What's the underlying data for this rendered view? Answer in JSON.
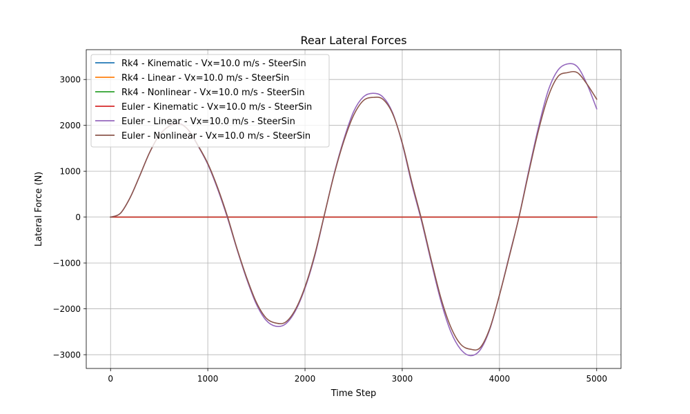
{
  "chart_data": {
    "type": "line",
    "title": "Rear Lateral Forces",
    "xlabel": "Time Step",
    "ylabel": "Lateral Force (N)",
    "xlim": [
      -250,
      5250
    ],
    "ylim": [
      -3300,
      3650
    ],
    "xticks": [
      0,
      1000,
      2000,
      3000,
      4000,
      5000
    ],
    "xtick_labels": [
      "0",
      "1000",
      "2000",
      "3000",
      "4000",
      "5000"
    ],
    "yticks": [
      -3000,
      -2000,
      -1000,
      0,
      1000,
      2000,
      3000
    ],
    "ytick_labels": [
      "−3000",
      "−2000",
      "−1000",
      "0",
      "1000",
      "2000",
      "3000"
    ],
    "grid": true,
    "legend_position": "top-left",
    "series": [
      {
        "name": "Rk4 - Kinematic - Vx=10.0 m/s - SteerSin",
        "color": "#1f77b4",
        "x": [
          0,
          5000
        ],
        "y": [
          0,
          0
        ]
      },
      {
        "name": "Rk4 - Linear - Vx=10.0 m/s - SteerSin",
        "color": "#ff7f0e",
        "x": [
          0,
          5000
        ],
        "y": [
          0,
          0
        ]
      },
      {
        "name": "Rk4 - Nonlinear - Vx=10.0 m/s - SteerSin",
        "color": "#2ca02c",
        "x": [
          0,
          5000
        ],
        "y": [
          0,
          0
        ]
      },
      {
        "name": "Euler - Kinematic - Vx=10.0 m/s - SteerSin",
        "color": "#d62728",
        "x": [
          0,
          5000
        ],
        "y": [
          0,
          0
        ]
      },
      {
        "name": "Euler - Linear - Vx=10.0 m/s - SteerSin",
        "color": "#9467bd",
        "x": [
          0,
          100,
          200,
          300,
          400,
          500,
          600,
          700,
          800,
          900,
          1000,
          1100,
          1200,
          1300,
          1400,
          1500,
          1600,
          1700,
          1800,
          1900,
          2000,
          2100,
          2200,
          2300,
          2400,
          2500,
          2600,
          2700,
          2800,
          2900,
          3000,
          3100,
          3200,
          3300,
          3400,
          3500,
          3600,
          3700,
          3800,
          3900,
          4000,
          4100,
          4200,
          4300,
          4400,
          4500,
          4600,
          4700,
          4800,
          4900,
          5000
        ],
        "y": [
          0,
          80,
          420,
          900,
          1400,
          1780,
          1980,
          2050,
          1900,
          1550,
          1150,
          620,
          0,
          -700,
          -1350,
          -1900,
          -2250,
          -2380,
          -2330,
          -2050,
          -1550,
          -850,
          50,
          950,
          1700,
          2300,
          2620,
          2700,
          2620,
          2280,
          1600,
          700,
          -100,
          -1000,
          -1850,
          -2500,
          -2880,
          -3020,
          -2900,
          -2450,
          -1700,
          -850,
          0,
          1000,
          1950,
          2750,
          3200,
          3340,
          3280,
          2900,
          2360
        ]
      },
      {
        "name": "Euler - Nonlinear - Vx=10.0 m/s - SteerSin",
        "color": "#8c564b",
        "x": [
          0,
          100,
          200,
          300,
          400,
          500,
          600,
          700,
          800,
          900,
          1000,
          1100,
          1200,
          1300,
          1400,
          1500,
          1600,
          1700,
          1800,
          1900,
          2000,
          2100,
          2200,
          2300,
          2400,
          2500,
          2600,
          2700,
          2800,
          2900,
          3000,
          3100,
          3200,
          3300,
          3400,
          3500,
          3600,
          3700,
          3800,
          3900,
          4000,
          4100,
          4200,
          4300,
          4400,
          4500,
          4600,
          4700,
          4800,
          4900,
          5000
        ],
        "y": [
          0,
          80,
          420,
          900,
          1400,
          1780,
          1980,
          2040,
          1900,
          1560,
          1170,
          650,
          30,
          -680,
          -1320,
          -1860,
          -2200,
          -2310,
          -2290,
          -2020,
          -1520,
          -820,
          60,
          930,
          1660,
          2220,
          2540,
          2610,
          2570,
          2260,
          1620,
          750,
          -60,
          -950,
          -1780,
          -2400,
          -2770,
          -2880,
          -2850,
          -2430,
          -1700,
          -870,
          -10,
          960,
          1880,
          2620,
          3060,
          3150,
          3150,
          2900,
          2570
        ]
      }
    ]
  }
}
